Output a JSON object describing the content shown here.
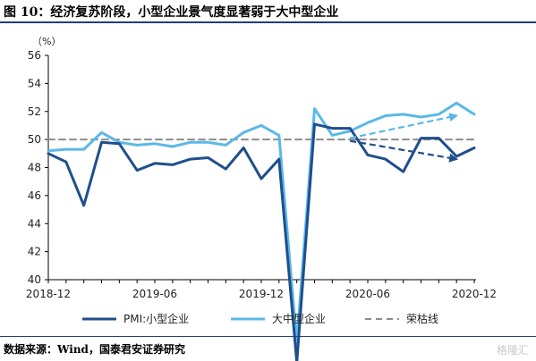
{
  "title": "图 10：经济复苏阶段，小型企业景气度显著弱于大中型企业",
  "source": "数据来源：Wind，国泰君安证券研究",
  "watermark": "格隆汇",
  "chart_data": {
    "type": "line",
    "unit_label": "（%）",
    "ylim": [
      40,
      56
    ],
    "yticks": [
      40,
      42,
      44,
      46,
      48,
      50,
      52,
      54,
      56
    ],
    "xlim": [
      "2018-12",
      "2020-12"
    ],
    "xticks": [
      "2018-12",
      "2019-06",
      "2019-12",
      "2020-06",
      "2020-12"
    ],
    "x": [
      "2018-12",
      "2019-01",
      "2019-02",
      "2019-03",
      "2019-04",
      "2019-05",
      "2019-06",
      "2019-07",
      "2019-08",
      "2019-09",
      "2019-10",
      "2019-11",
      "2019-12",
      "2020-01",
      "2020-02",
      "2020-03",
      "2020-04",
      "2020-05",
      "2020-06",
      "2020-07",
      "2020-08",
      "2020-09",
      "2020-10",
      "2020-11",
      "2020-12"
    ],
    "series": [
      {
        "name": "PMI:小型企业",
        "color": "#1f4e8c",
        "values": [
          49.0,
          48.4,
          45.3,
          49.8,
          49.7,
          47.8,
          48.3,
          48.2,
          48.6,
          48.7,
          47.9,
          49.4,
          47.2,
          48.6,
          34.1,
          51.1,
          50.8,
          50.8,
          48.9,
          48.6,
          47.7,
          50.1,
          50.1,
          48.8,
          49.4
        ]
      },
      {
        "name": "大中型企业",
        "color": "#5bb8e8",
        "values": [
          49.2,
          49.3,
          49.3,
          50.5,
          49.8,
          49.6,
          49.7,
          49.5,
          49.8,
          49.8,
          49.6,
          50.5,
          51.0,
          50.3,
          35.5,
          52.2,
          50.3,
          50.6,
          51.2,
          51.7,
          51.8,
          51.6,
          51.8,
          52.6,
          51.8
        ]
      },
      {
        "name": "荣枯线",
        "color": "#8c8c8c",
        "dashed": true,
        "values": [
          50,
          50,
          50,
          50,
          50,
          50,
          50,
          50,
          50,
          50,
          50,
          50,
          50,
          50,
          50,
          50,
          50,
          50,
          50,
          50,
          50,
          50,
          50,
          50,
          50
        ]
      }
    ],
    "arrows": [
      {
        "from": [
          "2020-05",
          50.1
        ],
        "to": [
          "2020-11",
          51.7
        ],
        "color": "#5bb8e8"
      },
      {
        "from": [
          "2020-05",
          49.9
        ],
        "to": [
          "2020-11",
          48.6
        ],
        "color": "#1f4e8c"
      }
    ],
    "legend_position": "bottom",
    "grid": false
  }
}
